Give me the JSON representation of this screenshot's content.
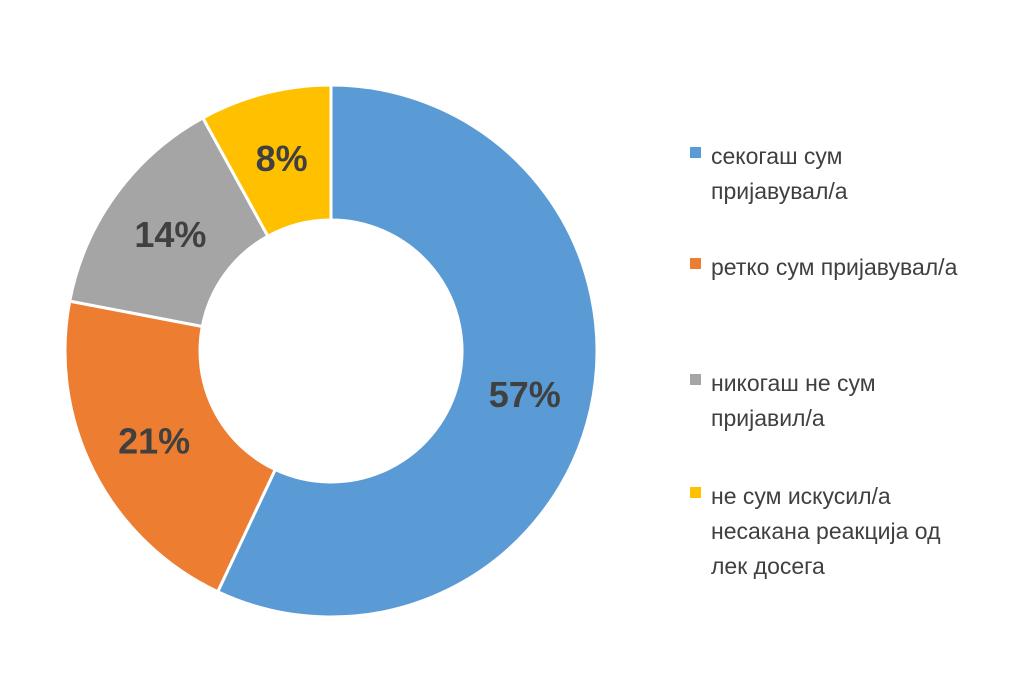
{
  "chart_data": {
    "type": "pie",
    "donut": true,
    "title": "",
    "slices": [
      {
        "label": "секогаш сум пријавувал/а",
        "value": 57,
        "display": "57%",
        "color": "#5B9BD5"
      },
      {
        "label": "ретко сум пријавувал/а",
        "value": 21,
        "display": "21%",
        "color": "#ED7D31"
      },
      {
        "label": "никогаш не сум пријавил/а",
        "value": 14,
        "display": "14%",
        "color": "#A5A5A5"
      },
      {
        "label": "не сум искусил/а несакана реакција од лек досега",
        "value": 8,
        "display": "8%",
        "color": "#FFC000"
      }
    ],
    "legend_position": "right"
  },
  "legend": {
    "items": [
      {
        "line1": "секогаш сум",
        "line2": "пријавувал/а",
        "line3": ""
      },
      {
        "line1": "ретко сум пријавувал/а",
        "line2": "",
        "line3": ""
      },
      {
        "line1": "никогаш не сум",
        "line2": "пријавил/а",
        "line3": ""
      },
      {
        "line1": "не сум искусил/а",
        "line2": "несакана реакција од",
        "line3": "лек досега"
      }
    ]
  }
}
